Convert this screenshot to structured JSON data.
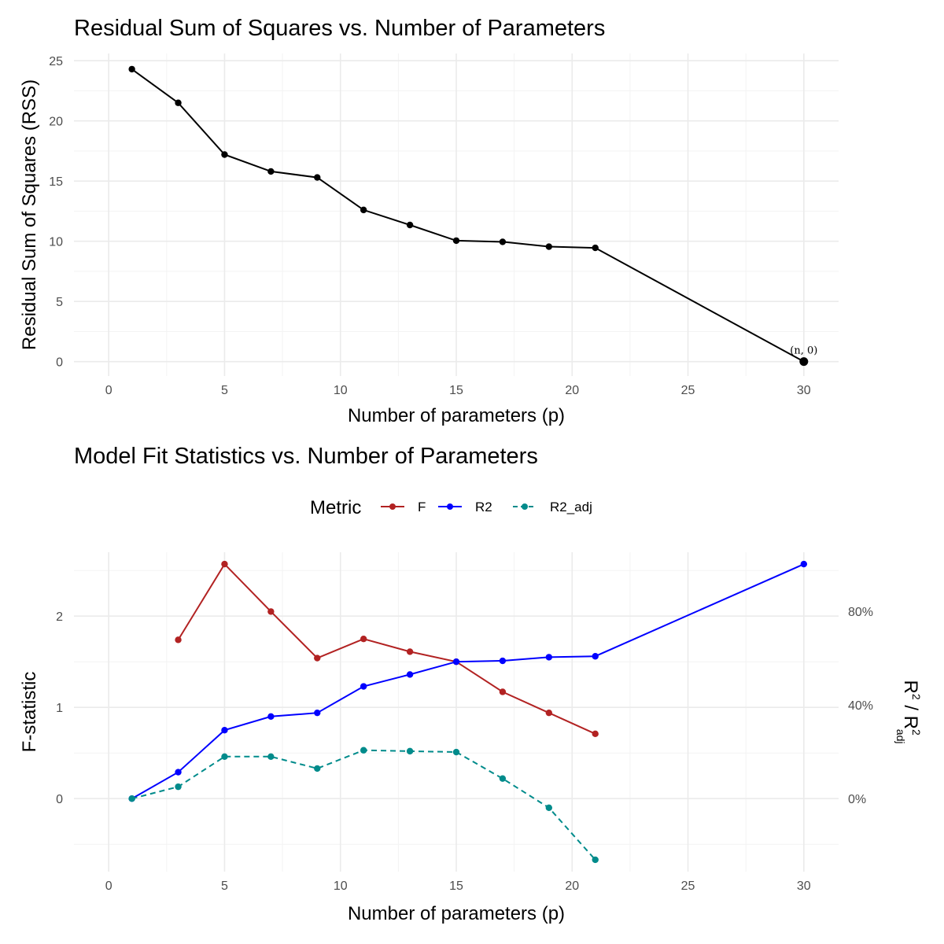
{
  "chart_data": [
    {
      "type": "line",
      "title": "Residual Sum of Squares vs. Number of Parameters",
      "xlabel": "Number of parameters (p)",
      "ylabel": "Residual Sum of Squares (RSS)",
      "xlim": [
        -1.5,
        31.5
      ],
      "ylim": [
        -1.2,
        25.6
      ],
      "x_ticks": [
        0,
        5,
        10,
        15,
        20,
        25,
        30
      ],
      "y_ticks": [
        0,
        5,
        10,
        15,
        20,
        25
      ],
      "grid": true,
      "series": [
        {
          "color": "#000000",
          "x": [
            1,
            3,
            5,
            7,
            9,
            11,
            13,
            15,
            17,
            19,
            21,
            30
          ],
          "y": [
            24.3,
            21.5,
            17.2,
            15.8,
            15.3,
            12.6,
            11.35,
            10.05,
            9.95,
            9.55,
            9.45,
            0
          ]
        }
      ],
      "annotations": [
        {
          "text": "(n, 0)",
          "x": 30,
          "y": 0
        }
      ]
    },
    {
      "type": "line",
      "title": "Model Fit Statistics vs. Number of Parameters",
      "xlabel": "Number of parameters (p)",
      "ylabel": "F-statistic",
      "y2label_main": "R",
      "y2label_sup": "2",
      "y2label_sep": " / R",
      "y2label_sup2": "2",
      "y2label_sub": "adj",
      "xlim": [
        -1.5,
        31.5
      ],
      "ylim": [
        -0.8,
        2.7
      ],
      "x_ticks": [
        0,
        5,
        10,
        15,
        20,
        25,
        30
      ],
      "y_ticks": [
        0,
        1,
        2
      ],
      "y2_ticks": [
        {
          "value": 0,
          "label": "0%"
        },
        {
          "value": 1.028,
          "label": "40%"
        },
        {
          "value": 2.055,
          "label": "80%"
        }
      ],
      "grid": true,
      "legend": {
        "title": "Metric",
        "position": "top",
        "entries": [
          "F",
          "R2",
          "R2_adj"
        ]
      },
      "series": [
        {
          "name": "F",
          "color": "#b22222",
          "dash": "solid",
          "x": [
            3,
            5,
            7,
            9,
            11,
            13,
            15,
            17,
            19,
            21
          ],
          "y": [
            1.74,
            2.57,
            2.05,
            1.54,
            1.75,
            1.61,
            1.5,
            1.17,
            0.94,
            0.71
          ]
        },
        {
          "name": "R2",
          "color": "#0000ff",
          "dash": "solid",
          "x": [
            1,
            3,
            5,
            7,
            9,
            11,
            13,
            15,
            17,
            19,
            21,
            30
          ],
          "y": [
            0,
            0.29,
            0.75,
            0.9,
            0.94,
            1.23,
            1.36,
            1.5,
            1.51,
            1.55,
            1.56,
            2.57
          ]
        },
        {
          "name": "R2_adj",
          "color": "#008b8b",
          "dash": "dashed",
          "x": [
            1,
            3,
            5,
            7,
            9,
            11,
            13,
            15,
            17,
            19,
            21
          ],
          "y": [
            0,
            0.13,
            0.46,
            0.46,
            0.33,
            0.53,
            0.52,
            0.51,
            0.22,
            -0.1,
            -0.67
          ]
        }
      ]
    }
  ]
}
